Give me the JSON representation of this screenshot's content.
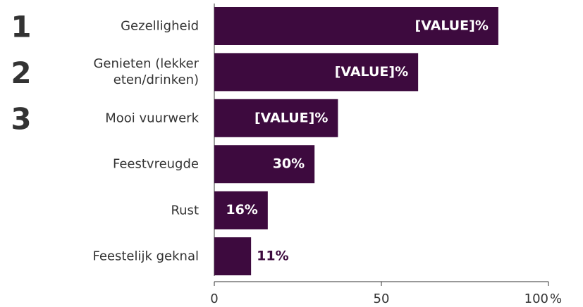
{
  "chart_data": {
    "type": "bar",
    "orientation": "horizontal",
    "categories": [
      "Gezelligheid",
      "Genieten (lekker eten/drinken)",
      "Mooi vuurwerk",
      "Feestvreugde",
      "Rust",
      "Feestelijk geknal"
    ],
    "values": [
      85,
      61,
      37,
      30,
      16,
      11
    ],
    "value_labels": [
      "[VALUE]%",
      "[VALUE]%",
      "[VALUE]%",
      "30%",
      "16%",
      "11%"
    ],
    "ranks": [
      "1",
      "2",
      "3"
    ],
    "color": "#3d0a3e",
    "xlim": [
      0,
      100
    ],
    "xticks": [
      0,
      50,
      100
    ],
    "xlabel": "%",
    "grid": false
  }
}
